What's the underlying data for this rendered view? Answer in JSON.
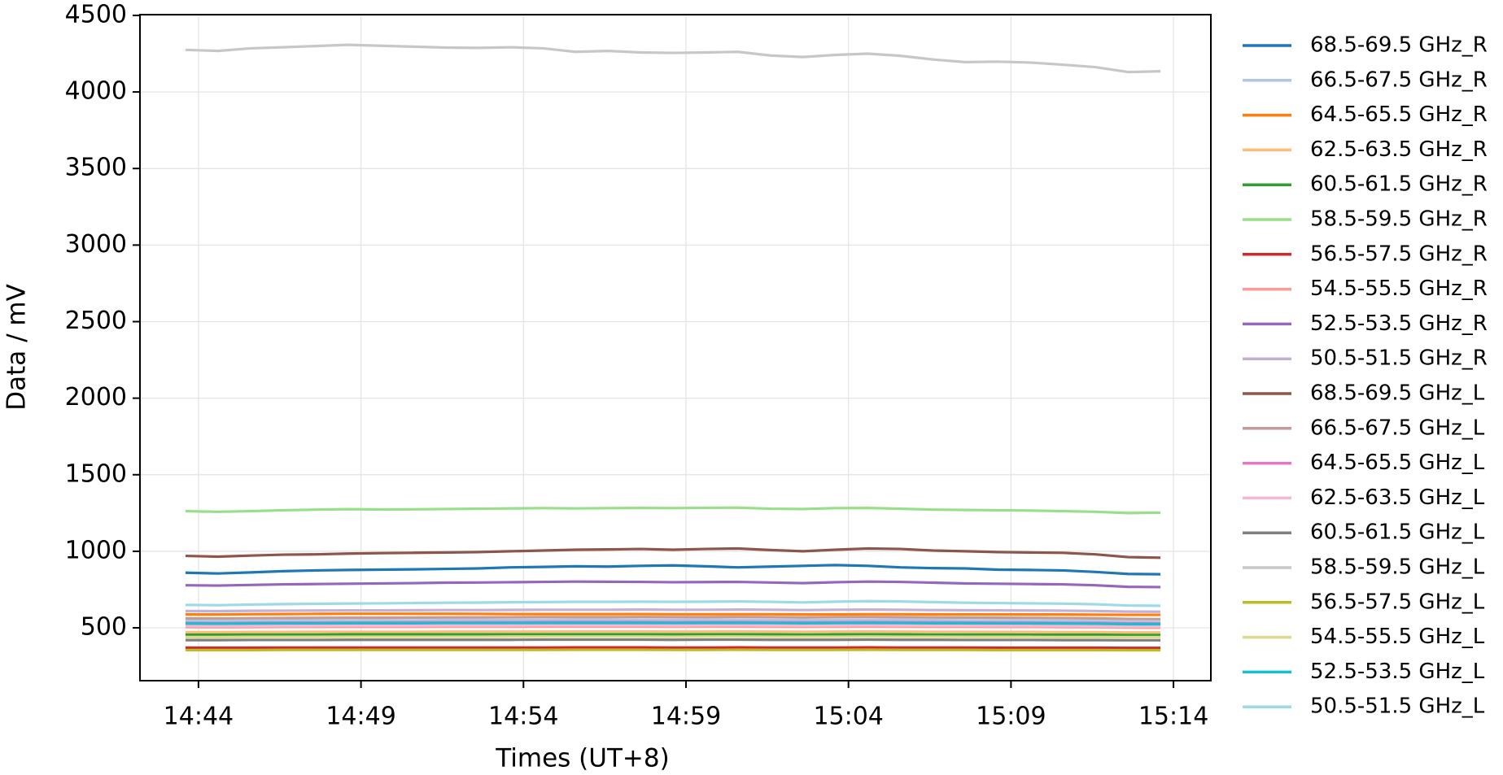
{
  "chart_data": {
    "type": "line",
    "xlabel": "Times (UT+8)",
    "ylabel": "Data / mV",
    "xlim": [
      882.2,
      915.15
    ],
    "ylim": [
      155,
      4505
    ],
    "xticks": [
      {
        "value": 884,
        "label": "14:44"
      },
      {
        "value": 889,
        "label": "14:49"
      },
      {
        "value": 894,
        "label": "14:54"
      },
      {
        "value": 899,
        "label": "14:59"
      },
      {
        "value": 904,
        "label": "15:04"
      },
      {
        "value": 909,
        "label": "15:09"
      },
      {
        "value": 914,
        "label": "15:14"
      }
    ],
    "yticks": [
      500,
      1000,
      1500,
      2000,
      2500,
      3000,
      3500,
      4000,
      4500
    ],
    "grid": true,
    "legend": "outside-right",
    "x": [
      883.6,
      884.6,
      885.6,
      886.6,
      887.6,
      888.6,
      889.6,
      890.6,
      891.6,
      892.6,
      893.6,
      894.6,
      895.6,
      896.6,
      897.6,
      898.6,
      899.6,
      900.6,
      901.6,
      902.6,
      903.6,
      904.6,
      905.6,
      906.6,
      907.6,
      908.6,
      909.6,
      910.6,
      911.6,
      912.6,
      913.6
    ],
    "series": [
      {
        "name": "68.5-69.5 GHz_R",
        "color": "#1f77b4",
        "values": [
          860,
          855,
          862,
          870,
          875,
          878,
          880,
          882,
          885,
          888,
          895,
          898,
          902,
          900,
          905,
          908,
          902,
          895,
          900,
          905,
          910,
          905,
          895,
          890,
          888,
          880,
          878,
          875,
          865,
          852,
          850
        ]
      },
      {
        "name": "66.5-67.5 GHz_R",
        "color": "#aec7e8",
        "values": [
          545,
          544,
          546,
          547,
          548,
          548,
          549,
          549,
          550,
          550,
          551,
          551,
          552,
          552,
          552,
          551,
          552,
          552,
          551,
          550,
          551,
          552,
          552,
          550,
          549,
          548,
          547,
          546,
          544,
          540,
          539
        ]
      },
      {
        "name": "64.5-65.5 GHz_R",
        "color": "#ff7f0e",
        "values": [
          588,
          587,
          589,
          590,
          591,
          592,
          592,
          592,
          592,
          591,
          590,
          590,
          590,
          590,
          590,
          589,
          589,
          589,
          589,
          588,
          588,
          589,
          589,
          588,
          588,
          588,
          587,
          587,
          586,
          585,
          585
        ]
      },
      {
        "name": "62.5-63.5 GHz_R",
        "color": "#ffbb78",
        "values": [
          472,
          472,
          473,
          473,
          474,
          474,
          474,
          474,
          475,
          475,
          475,
          475,
          476,
          476,
          476,
          475,
          475,
          476,
          475,
          474,
          475,
          476,
          475,
          474,
          474,
          473,
          473,
          472,
          472,
          470,
          470
        ]
      },
      {
        "name": "60.5-61.5 GHz_R",
        "color": "#2ca02c",
        "values": [
          455,
          455,
          456,
          456,
          456,
          457,
          457,
          457,
          457,
          457,
          457,
          457,
          458,
          458,
          458,
          457,
          457,
          458,
          457,
          456,
          457,
          458,
          457,
          456,
          456,
          456,
          455,
          455,
          455,
          453,
          453
        ]
      },
      {
        "name": "58.5-59.5 GHz_R",
        "color": "#98df8a",
        "values": [
          1262,
          1258,
          1262,
          1268,
          1272,
          1275,
          1273,
          1274,
          1276,
          1278,
          1280,
          1282,
          1280,
          1282,
          1283,
          1282,
          1284,
          1285,
          1278,
          1276,
          1282,
          1283,
          1278,
          1272,
          1270,
          1268,
          1266,
          1262,
          1258,
          1250,
          1252
        ]
      },
      {
        "name": "56.5-57.5 GHz_R",
        "color": "#d62728",
        "values": [
          370,
          370,
          370,
          371,
          371,
          371,
          371,
          371,
          371,
          371,
          371,
          371,
          372,
          372,
          372,
          371,
          371,
          372,
          371,
          371,
          371,
          372,
          371,
          371,
          371,
          370,
          370,
          370,
          370,
          369,
          369
        ]
      },
      {
        "name": "54.5-55.5 GHz_R",
        "color": "#ff9896",
        "values": [
          505,
          504,
          505,
          506,
          506,
          507,
          507,
          507,
          508,
          508,
          508,
          509,
          509,
          509,
          509,
          508,
          509,
          509,
          508,
          507,
          508,
          509,
          508,
          507,
          507,
          506,
          506,
          505,
          504,
          502,
          501
        ]
      },
      {
        "name": "52.5-53.5 GHz_R",
        "color": "#9467bd",
        "values": [
          778,
          776,
          780,
          784,
          786,
          788,
          790,
          792,
          795,
          796,
          798,
          800,
          802,
          801,
          800,
          798,
          799,
          800,
          796,
          792,
          798,
          802,
          800,
          795,
          790,
          788,
          786,
          784,
          778,
          768,
          766
        ]
      },
      {
        "name": "50.5-51.5 GHz_R",
        "color": "#c5b0d5",
        "values": [
          610,
          609,
          611,
          612,
          613,
          614,
          614,
          615,
          616,
          616,
          617,
          618,
          618,
          618,
          619,
          618,
          618,
          619,
          618,
          616,
          618,
          619,
          618,
          616,
          615,
          614,
          613,
          612,
          610,
          606,
          605
        ]
      },
      {
        "name": "68.5-69.5 GHz_L",
        "color": "#8c564b",
        "values": [
          970,
          965,
          972,
          978,
          980,
          985,
          988,
          990,
          992,
          995,
          1000,
          1005,
          1010,
          1012,
          1015,
          1010,
          1015,
          1018,
          1008,
          1000,
          1010,
          1018,
          1015,
          1005,
          1000,
          995,
          992,
          990,
          980,
          962,
          958
        ]
      },
      {
        "name": "66.5-67.5 GHz_L",
        "color": "#c49c94",
        "values": [
          562,
          561,
          563,
          564,
          565,
          566,
          566,
          567,
          568,
          568,
          569,
          570,
          570,
          570,
          571,
          570,
          570,
          571,
          570,
          568,
          570,
          571,
          570,
          568,
          567,
          566,
          565,
          564,
          562,
          558,
          557
        ]
      },
      {
        "name": "64.5-65.5 GHz_L",
        "color": "#e377c2",
        "values": [
          532,
          531,
          533,
          534,
          534,
          535,
          535,
          536,
          536,
          537,
          537,
          538,
          538,
          538,
          538,
          537,
          538,
          538,
          537,
          536,
          537,
          538,
          537,
          536,
          535,
          535,
          534,
          533,
          532,
          529,
          528
        ]
      },
      {
        "name": "62.5-63.5 GHz_L",
        "color": "#f7b6d2",
        "values": [
          512,
          511,
          512,
          513,
          513,
          514,
          514,
          514,
          515,
          515,
          515,
          516,
          516,
          516,
          516,
          515,
          516,
          516,
          515,
          514,
          515,
          516,
          515,
          514,
          514,
          513,
          513,
          512,
          511,
          509,
          509
        ]
      },
      {
        "name": "60.5-61.5 GHz_L",
        "color": "#7f7f7f",
        "values": [
          420,
          420,
          421,
          421,
          421,
          422,
          422,
          422,
          422,
          422,
          422,
          423,
          423,
          423,
          423,
          422,
          423,
          423,
          422,
          422,
          422,
          423,
          422,
          422,
          421,
          421,
          421,
          420,
          420,
          419,
          419
        ]
      },
      {
        "name": "58.5-59.5 GHz_L",
        "color": "#c7c7c7",
        "values": [
          4275,
          4268,
          4285,
          4292,
          4300,
          4308,
          4302,
          4296,
          4290,
          4288,
          4292,
          4285,
          4262,
          4268,
          4258,
          4255,
          4258,
          4262,
          4238,
          4228,
          4242,
          4250,
          4236,
          4212,
          4195,
          4198,
          4192,
          4178,
          4162,
          4130,
          4135
        ]
      },
      {
        "name": "56.5-57.5 GHz_L",
        "color": "#bcbd22",
        "values": [
          355,
          355,
          355,
          356,
          356,
          356,
          356,
          356,
          356,
          356,
          356,
          356,
          357,
          357,
          357,
          356,
          356,
          357,
          356,
          356,
          356,
          357,
          356,
          356,
          356,
          355,
          355,
          355,
          355,
          354,
          354
        ]
      },
      {
        "name": "54.5-55.5 GHz_L",
        "color": "#dbdb8d",
        "values": [
          440,
          440,
          441,
          441,
          441,
          442,
          442,
          442,
          442,
          442,
          443,
          443,
          443,
          443,
          443,
          442,
          443,
          443,
          442,
          442,
          442,
          443,
          442,
          442,
          441,
          441,
          441,
          440,
          440,
          439,
          439
        ]
      },
      {
        "name": "52.5-53.5 GHz_L",
        "color": "#17becf",
        "values": [
          528,
          527,
          528,
          529,
          529,
          530,
          530,
          530,
          531,
          531,
          531,
          532,
          532,
          532,
          532,
          531,
          532,
          532,
          531,
          530,
          531,
          532,
          531,
          530,
          530,
          529,
          529,
          528,
          527,
          524,
          524
        ]
      },
      {
        "name": "50.5-51.5 GHz_L",
        "color": "#9edae5",
        "values": [
          650,
          648,
          652,
          655,
          657,
          659,
          660,
          662,
          664,
          665,
          667,
          668,
          670,
          670,
          671,
          670,
          671,
          672,
          670,
          666,
          671,
          674,
          672,
          668,
          664,
          662,
          660,
          658,
          654,
          646,
          644
        ]
      }
    ]
  }
}
